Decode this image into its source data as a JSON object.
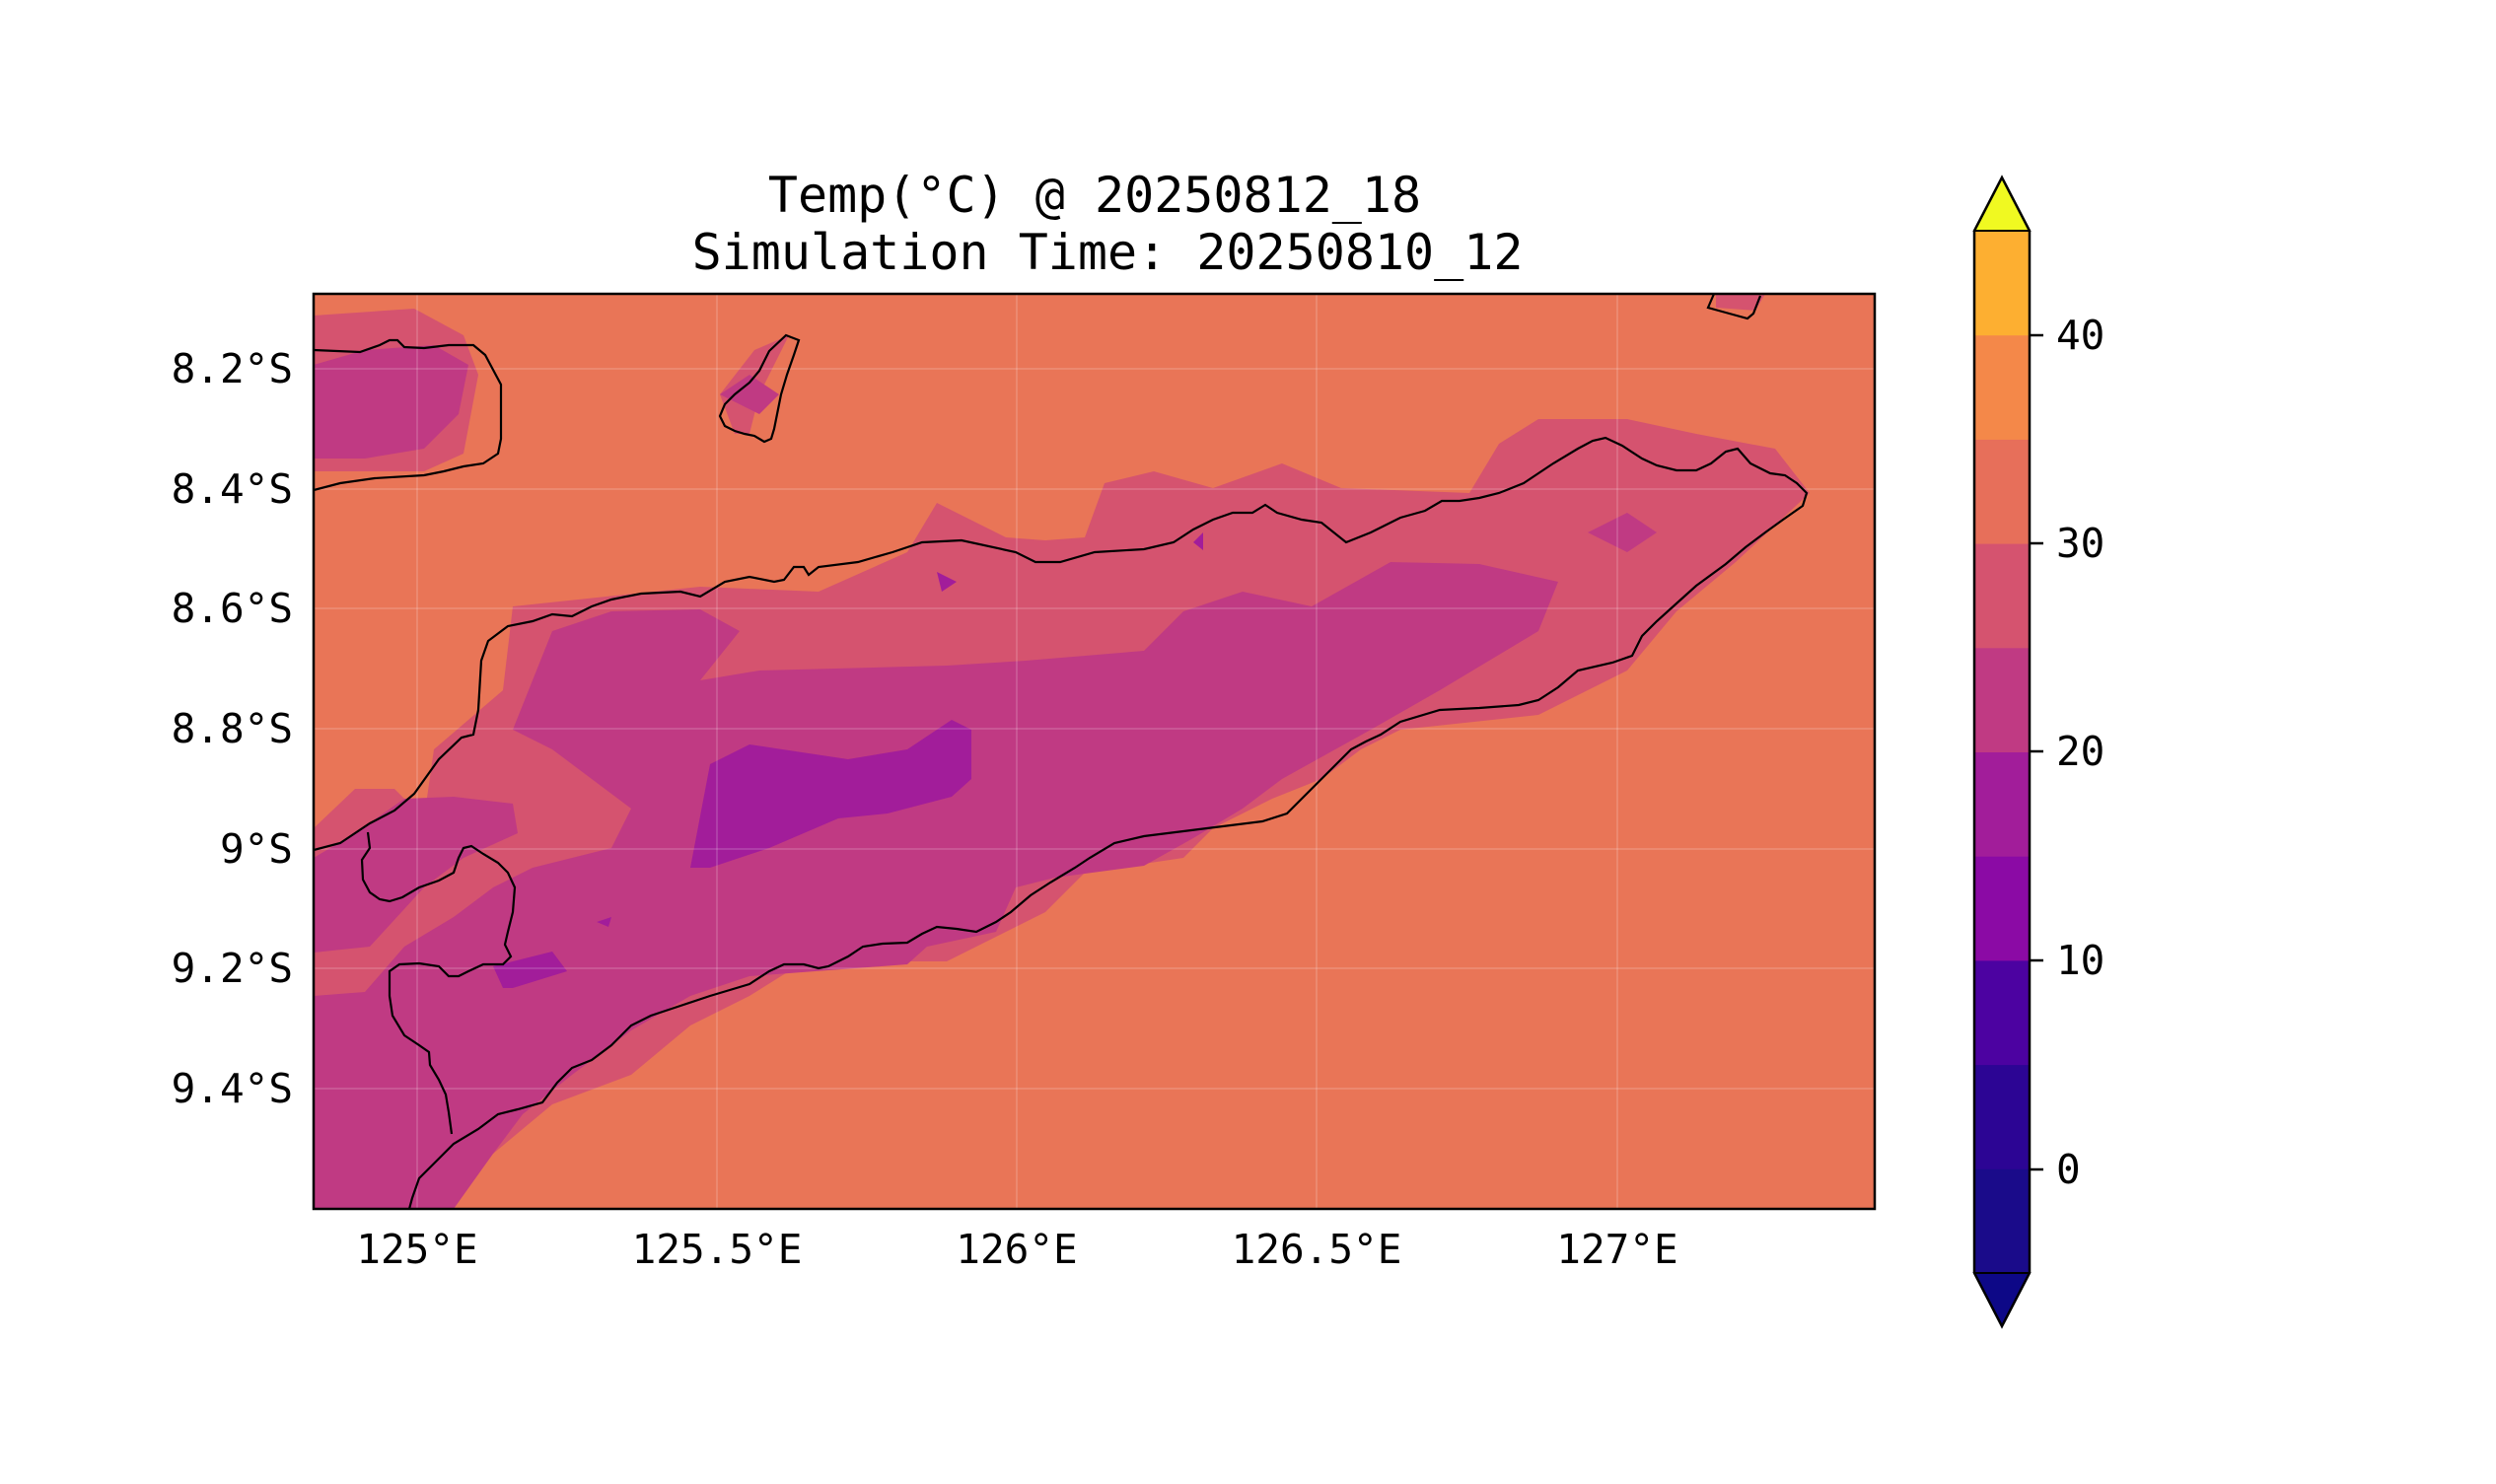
{
  "title": {
    "line1": "Temp(°C) @ 20250812_18",
    "line2": "Simulation Time: 20250810_12"
  },
  "map": {
    "lon_ticks": [
      "125°E",
      "125.5°E",
      "126°E",
      "126.5°E",
      "127°E"
    ],
    "lat_ticks": [
      "8.2°S",
      "8.4°S",
      "8.6°S",
      "8.8°S",
      "9°S",
      "9.2°S",
      "9.4°S"
    ],
    "extent": {
      "lon_min": 124.83,
      "lon_max": 127.42,
      "lat_min": -9.6,
      "lat_max": -8.08
    },
    "gridlines": true
  },
  "colorbar": {
    "ticks": [
      "0",
      "10",
      "20",
      "30",
      "40"
    ],
    "levels": [
      -5,
      0,
      5,
      10,
      15,
      20,
      25,
      30,
      35,
      40,
      45
    ],
    "colors": [
      "#1a0b8a",
      "#2c0594",
      "#4c02a1",
      "#8b0aa5",
      "#a21d9a",
      "#c03a83",
      "#d5536f",
      "#e76f5a",
      "#f48849",
      "#fdaf31",
      "#f3e626"
    ],
    "under_color": "#0d0887",
    "over_color": "#f0f921",
    "extend": "both",
    "colormap": "plasma"
  },
  "palette": {
    "background_field": "#e97557",
    "band_20_25": "#d5536f",
    "band_15_20": "#c03a83",
    "band_10_15": "#a21d9a",
    "coastline": "#000000"
  }
}
